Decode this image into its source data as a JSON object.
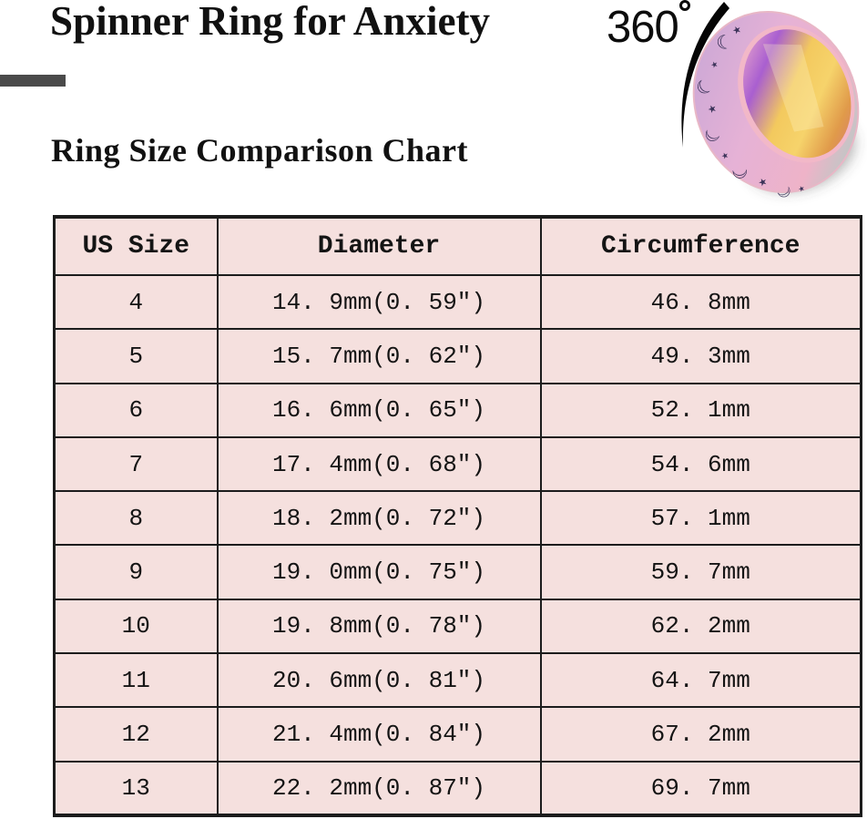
{
  "header": {
    "title": "Spinner Ring for Anxiety",
    "rotation_value": "360",
    "subtitle": "Ring Size Comparison Chart"
  },
  "icons": {
    "degree_icon": "degree-circle",
    "ring_image": "rainbow-spinner-ring-with-moons-and-stars",
    "rotation_arc": "rotation-motion-arc"
  },
  "colors": {
    "table_bg": "#f5e0de",
    "table_border": "#1c1c1c",
    "text": "#141414",
    "accent_bar": "#4a4a4a",
    "ring_band_pink": "#e3b0d4",
    "ring_band_teal": "#a9d3ca",
    "ring_bore_gold": "#f3c95e",
    "ring_bore_purple": "#a95fd0"
  },
  "chart_data": {
    "type": "table",
    "title": "Ring Size Comparison Chart",
    "columns": [
      "US Size",
      "Diameter",
      "Circumference"
    ],
    "rows": [
      [
        "4",
        "14. 9mm(0. 59″)",
        "46. 8mm"
      ],
      [
        "5",
        "15. 7mm(0. 62″)",
        "49. 3mm"
      ],
      [
        "6",
        "16. 6mm(0. 65″)",
        "52. 1mm"
      ],
      [
        "7",
        "17. 4mm(0. 68″)",
        "54. 6mm"
      ],
      [
        "8",
        "18. 2mm(0. 72″)",
        "57. 1mm"
      ],
      [
        "9",
        "19. 0mm(0. 75″)",
        "59. 7mm"
      ],
      [
        "10",
        "19. 8mm(0. 78″)",
        "62. 2mm"
      ],
      [
        "11",
        "20. 6mm(0. 81″)",
        "64. 7mm"
      ],
      [
        "12",
        "21. 4mm(0. 84″)",
        "67. 2mm"
      ],
      [
        "13",
        "22. 2mm(0. 87″)",
        "69. 7mm"
      ]
    ]
  }
}
